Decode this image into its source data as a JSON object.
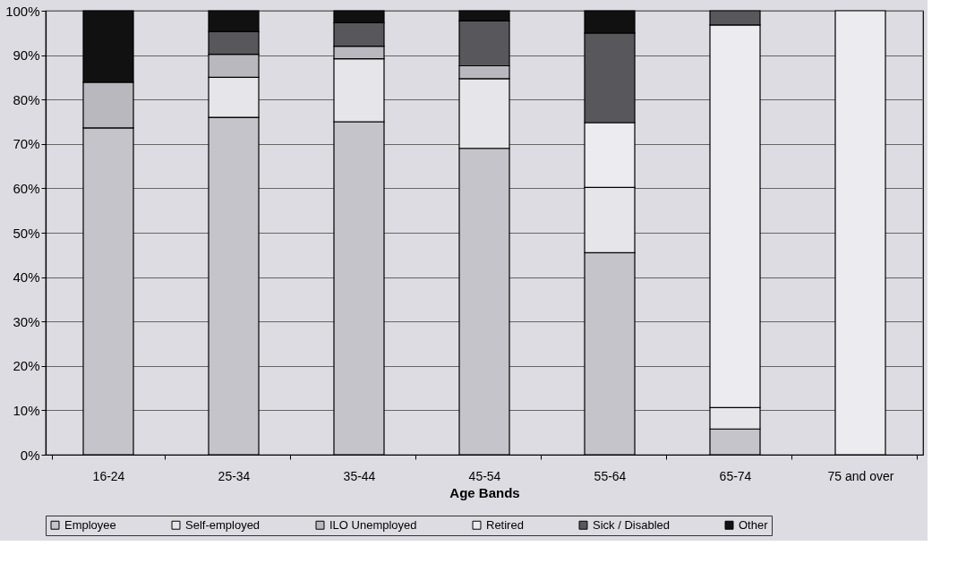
{
  "chart_data": {
    "type": "bar",
    "stacked": true,
    "xlabel": "Age Bands",
    "categories": [
      "16-24",
      "25-34",
      "35-44",
      "45-54",
      "55-64",
      "65-74",
      "75 and over"
    ],
    "series": [
      {
        "name": "Employee",
        "color": "#c4c4ca",
        "values": [
          73.6,
          76,
          75,
          69,
          45.5,
          5.8,
          null
        ]
      },
      {
        "name": "Self-employed",
        "color": "#e6e6ea",
        "values": [
          null,
          9,
          14.2,
          15.7,
          14.7,
          4.8,
          null
        ]
      },
      {
        "name": "ILO Unemployed",
        "color": "#b8b8be",
        "values": [
          10.3,
          5.2,
          2.8,
          2.9,
          null,
          null,
          null
        ]
      },
      {
        "name": "Retired",
        "color": "#ececf0",
        "values": [
          null,
          null,
          null,
          null,
          14.6,
          86.2,
          100
        ]
      },
      {
        "name": "Sick / Disabled",
        "color": "#58585c",
        "values": [
          null,
          5.1,
          5.3,
          10.1,
          20.2,
          3.2,
          null
        ]
      },
      {
        "name": "Other",
        "color": "#111111",
        "values": [
          16.1,
          4.7,
          2.7,
          2.3,
          5,
          null,
          null
        ]
      }
    ],
    "ylim": [
      0,
      100
    ],
    "yticks": [
      {
        "value": 0,
        "label": "0%"
      },
      {
        "value": 10,
        "label": "10%"
      },
      {
        "value": 20,
        "label": "20%"
      },
      {
        "value": 30,
        "label": "30%"
      },
      {
        "value": 40,
        "label": "40%"
      },
      {
        "value": 50,
        "label": "50%"
      },
      {
        "value": 60,
        "label": "60%"
      },
      {
        "value": 70,
        "label": "70%"
      },
      {
        "value": 80,
        "label": "80%"
      },
      {
        "value": 90,
        "label": "90%"
      },
      {
        "value": 100,
        "label": "100%"
      }
    ],
    "grid": "y",
    "legend": "bottom"
  }
}
